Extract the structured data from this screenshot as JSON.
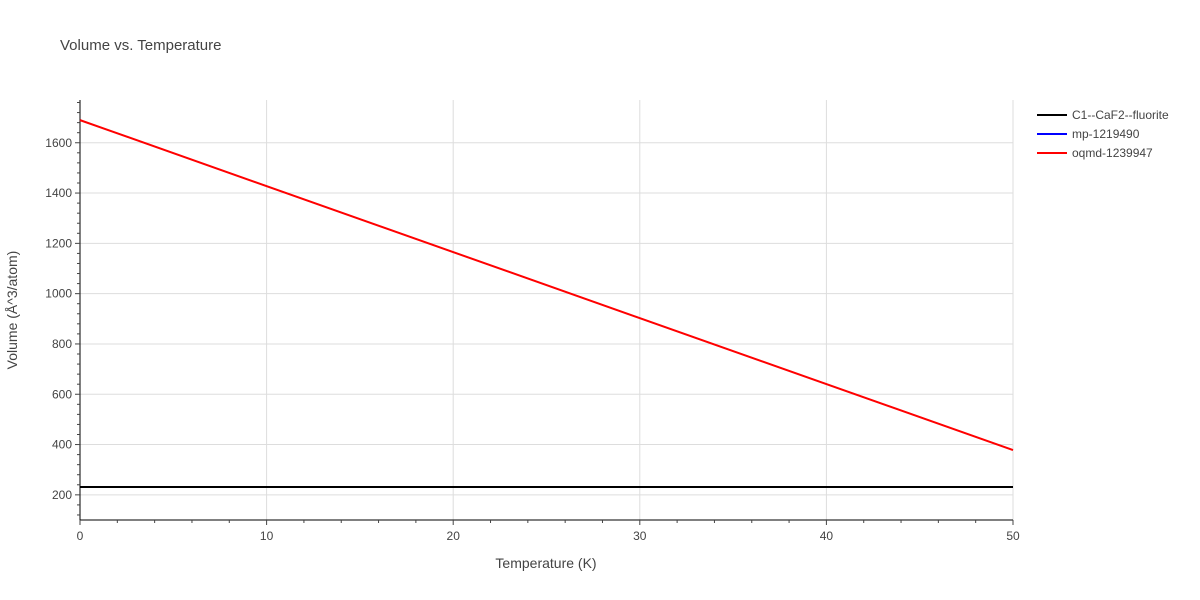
{
  "chart_data": {
    "type": "line",
    "title": "Volume vs. Temperature",
    "xlabel": "Temperature (K)",
    "ylabel": "Volume (Å^3/atom)",
    "xlim": [
      0,
      50
    ],
    "ylim": [
      100,
      1770
    ],
    "xticks": [
      0,
      10,
      20,
      30,
      40,
      50
    ],
    "yticks": [
      200,
      400,
      600,
      800,
      1000,
      1200,
      1400,
      1600
    ],
    "grid": true,
    "legend_position": "top-right",
    "series": [
      {
        "name": "C1--CaF2--fluorite",
        "color": "#000000",
        "x": [
          0,
          50
        ],
        "y": [
          231,
          231
        ]
      },
      {
        "name": "mp-1219490",
        "color": "#0000ff",
        "x": [
          0,
          50
        ],
        "y": [
          231,
          231
        ]
      },
      {
        "name": "oqmd-1239947",
        "color": "#ff0000",
        "x": [
          0,
          50
        ],
        "y": [
          1690,
          378
        ]
      }
    ]
  }
}
